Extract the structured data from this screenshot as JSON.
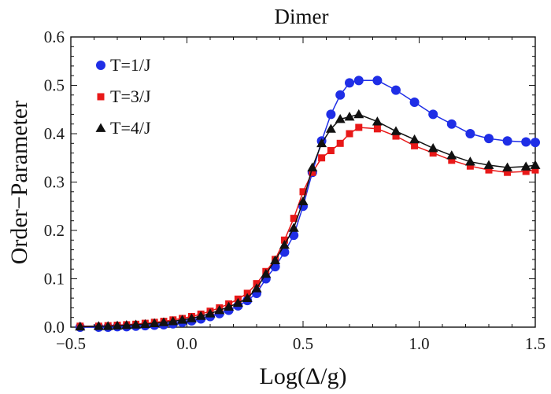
{
  "chart_data": {
    "type": "line",
    "title": "Dimer",
    "xlabel": "Log(Δ/g)",
    "ylabel": "Order−Parameter",
    "xlim": [
      -0.5,
      1.5
    ],
    "ylim": [
      0.0,
      0.6
    ],
    "xticks": [
      -0.5,
      0.0,
      0.5,
      1.0,
      1.5
    ],
    "xtick_labels": [
      "−0.5",
      "0.0",
      "0.5",
      "1.0",
      "1.5"
    ],
    "yticks": [
      0.0,
      0.1,
      0.2,
      0.3,
      0.4,
      0.5,
      0.6
    ],
    "ytick_labels": [
      "0.0",
      "0.1",
      "0.2",
      "0.3",
      "0.4",
      "0.5",
      "0.6"
    ],
    "grid": false,
    "legend_position": "top-left",
    "series": [
      {
        "name": "T=1/J",
        "color": "#1f2ee6",
        "marker": "circle",
        "x": [
          -0.46,
          -0.38,
          -0.34,
          -0.3,
          -0.26,
          -0.22,
          -0.18,
          -0.14,
          -0.1,
          -0.06,
          -0.02,
          0.02,
          0.06,
          0.1,
          0.14,
          0.18,
          0.22,
          0.26,
          0.3,
          0.34,
          0.38,
          0.42,
          0.46,
          0.5,
          0.54,
          0.58,
          0.62,
          0.66,
          0.7,
          0.74,
          0.82,
          0.9,
          0.98,
          1.06,
          1.14,
          1.22,
          1.3,
          1.38,
          1.46,
          1.5
        ],
        "y": [
          0.0,
          0.0,
          0.0,
          0.001,
          0.001,
          0.002,
          0.003,
          0.004,
          0.005,
          0.007,
          0.01,
          0.013,
          0.017,
          0.022,
          0.028,
          0.035,
          0.044,
          0.055,
          0.07,
          0.1,
          0.125,
          0.155,
          0.19,
          0.25,
          0.32,
          0.385,
          0.44,
          0.48,
          0.505,
          0.51,
          0.51,
          0.49,
          0.465,
          0.44,
          0.42,
          0.4,
          0.39,
          0.385,
          0.383,
          0.382
        ]
      },
      {
        "name": "T=3/J",
        "color": "#e81818",
        "marker": "square",
        "x": [
          -0.46,
          -0.38,
          -0.34,
          -0.3,
          -0.26,
          -0.22,
          -0.18,
          -0.14,
          -0.1,
          -0.06,
          -0.02,
          0.02,
          0.06,
          0.1,
          0.14,
          0.18,
          0.22,
          0.26,
          0.3,
          0.34,
          0.38,
          0.42,
          0.46,
          0.5,
          0.54,
          0.58,
          0.62,
          0.66,
          0.7,
          0.74,
          0.82,
          0.9,
          0.98,
          1.06,
          1.14,
          1.22,
          1.3,
          1.38,
          1.46,
          1.5
        ],
        "y": [
          0.002,
          0.002,
          0.003,
          0.004,
          0.005,
          0.006,
          0.008,
          0.01,
          0.012,
          0.015,
          0.018,
          0.022,
          0.027,
          0.033,
          0.04,
          0.048,
          0.058,
          0.07,
          0.09,
          0.115,
          0.14,
          0.18,
          0.225,
          0.28,
          0.32,
          0.35,
          0.365,
          0.38,
          0.4,
          0.413,
          0.41,
          0.395,
          0.375,
          0.36,
          0.345,
          0.333,
          0.325,
          0.32,
          0.322,
          0.325
        ]
      },
      {
        "name": "T=4/J",
        "color": "#111111",
        "marker": "triangle",
        "x": [
          -0.46,
          -0.38,
          -0.34,
          -0.3,
          -0.26,
          -0.22,
          -0.18,
          -0.14,
          -0.1,
          -0.06,
          -0.02,
          0.02,
          0.06,
          0.1,
          0.14,
          0.18,
          0.22,
          0.26,
          0.3,
          0.34,
          0.38,
          0.42,
          0.46,
          0.5,
          0.54,
          0.58,
          0.62,
          0.66,
          0.7,
          0.74,
          0.82,
          0.9,
          0.98,
          1.06,
          1.14,
          1.22,
          1.3,
          1.38,
          1.46,
          1.5
        ],
        "y": [
          0.001,
          0.002,
          0.002,
          0.003,
          0.004,
          0.005,
          0.006,
          0.008,
          0.01,
          0.012,
          0.015,
          0.018,
          0.023,
          0.028,
          0.035,
          0.042,
          0.05,
          0.06,
          0.08,
          0.11,
          0.138,
          0.17,
          0.205,
          0.26,
          0.33,
          0.38,
          0.41,
          0.43,
          0.435,
          0.44,
          0.425,
          0.405,
          0.388,
          0.37,
          0.355,
          0.342,
          0.335,
          0.33,
          0.332,
          0.335
        ]
      }
    ]
  }
}
